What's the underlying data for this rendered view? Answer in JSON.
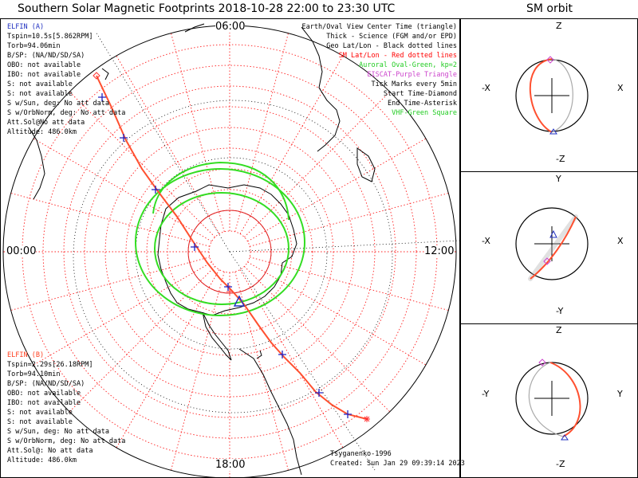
{
  "title": "Southern Solar Magnetic Footprints 2018-10-28 22:00 to 23:30 UTC",
  "orbit_title": "SM orbit",
  "hour_labels": {
    "top": "06:00",
    "left": "00:00",
    "right": "12:00",
    "bottom": "18:00"
  },
  "elfin_a": {
    "name": "ELFIN (A)",
    "color": "#2030c0",
    "lines": [
      "Tspin=10.5s[5.862RPM]",
      "Torb=94.06min",
      "B/SP: (NA/ND/SD/SA)",
      "OBO: not available",
      "IBO: not available",
      "S: not available",
      "S: not available",
      "S w/Sun, deg: No att data",
      "S w/OrbNorm, deg: No att data",
      "Att.Sol@No att data",
      "Altitude: 486.0km"
    ]
  },
  "elfin_b": {
    "name": "ELFIN (B)",
    "color": "#ff4020",
    "lines": [
      "Tspin=2.29s[26.18RPM]",
      "Torb=94.10min",
      "B/SP: (NA/ND/SD/SA)",
      "OBO: not available",
      "IBO: not available",
      "S: not available",
      "S: not available",
      "S w/Sun, deg: No att data",
      "S w/OrbNorm, deg: No att data",
      "Att.Sol@: No att data",
      "Altitude: 486.0km"
    ]
  },
  "legend": [
    {
      "text": "Earth/Oval View Center Time (triangle)",
      "color": "#000000"
    },
    {
      "text": "Thick - Science (FGM and/or EPD)",
      "color": "#000000"
    },
    {
      "text": "Geo Lat/Lon - Black dotted lines",
      "color": "#000000"
    },
    {
      "text": "SM Lat/Lon - Red dotted lines",
      "color": "#ff0000"
    },
    {
      "text": "Auroral Oval-Green, kp=2",
      "color": "#22cc22"
    },
    {
      "text": "EISCAT-Purple Triangle",
      "color": "#cc44cc"
    },
    {
      "text": "Tick Marks every 5min",
      "color": "#000000"
    },
    {
      "text": "Start Time-Diamond",
      "color": "#000000"
    },
    {
      "text": "End Time-Asterisk",
      "color": "#000000"
    },
    {
      "text": "VHF-Green Square",
      "color": "#22cc22"
    }
  ],
  "credit": {
    "model": "Tsyganenko-1996",
    "created": "Created: Sun Jan 29 09:39:14 2023"
  },
  "orbit_panels": [
    {
      "top": "Z",
      "bottom": "-Z",
      "left": "-X",
      "right": "X"
    },
    {
      "top": "Y",
      "bottom": "-Y",
      "left": "-X",
      "right": "X"
    },
    {
      "top": "Z",
      "bottom": "-Z",
      "left": "-Y",
      "right": "Y"
    }
  ],
  "colors": {
    "sm_grid": "#ff2020",
    "geo_grid": "#000000",
    "auroral_oval": "#33dd22",
    "track": "#ff5030",
    "tick": "#2020c0",
    "center_triangle": "#2030c0"
  }
}
